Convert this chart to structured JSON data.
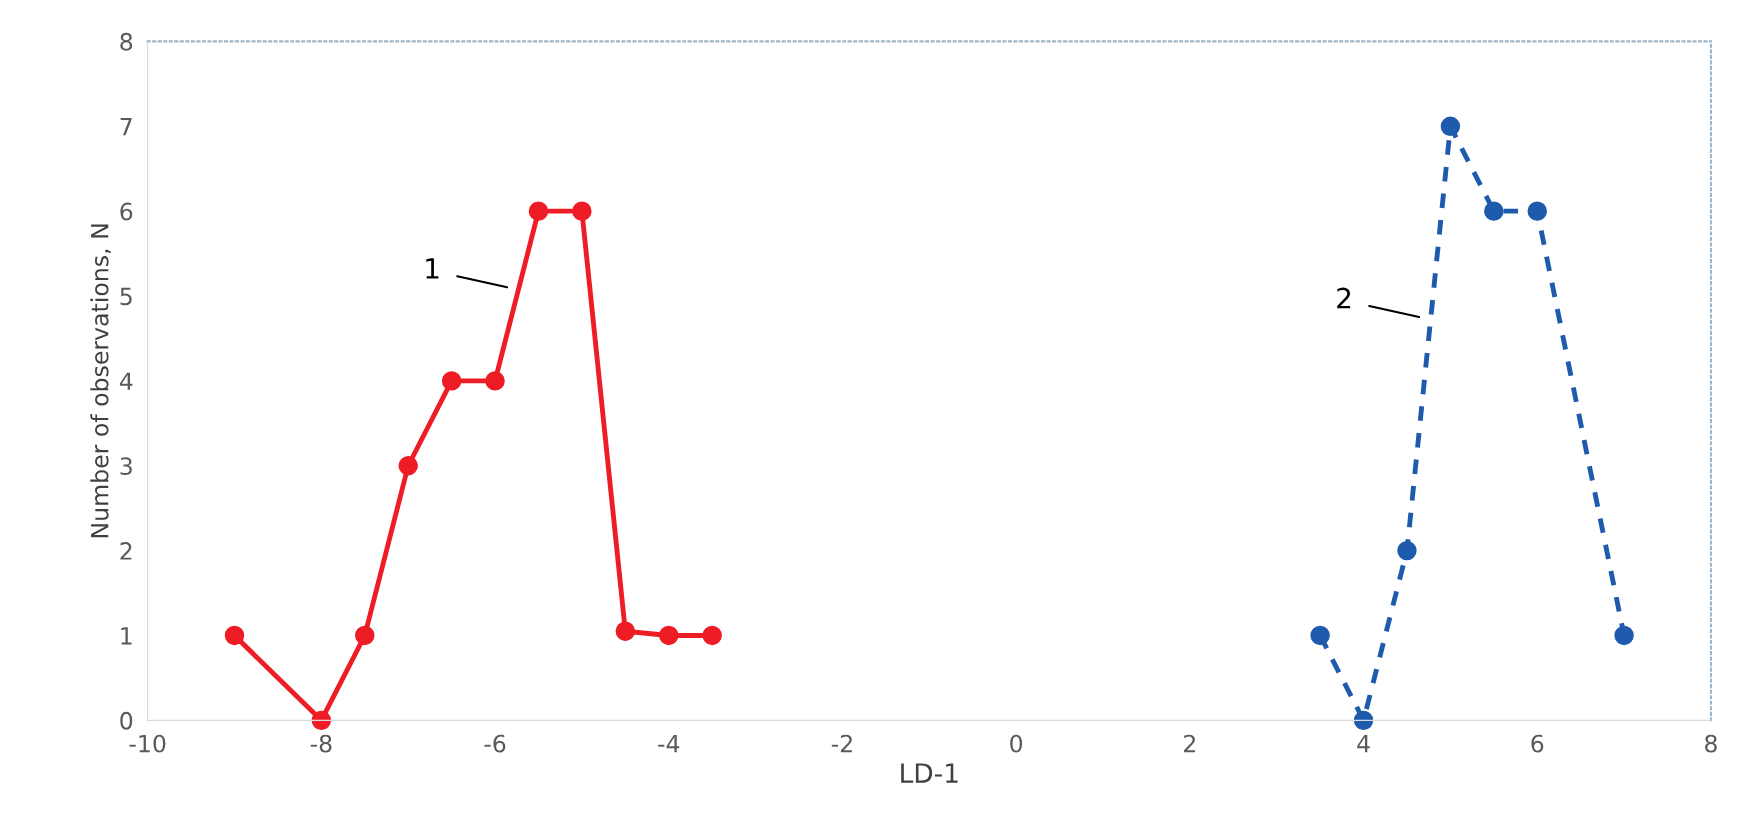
{
  "chart_data": {
    "type": "line",
    "xlabel": "LD-1",
    "ylabel": "Number of observations, N",
    "xlim": [
      -10,
      8
    ],
    "xticks": [
      -10,
      -8,
      -6,
      -4,
      -2,
      0,
      2,
      4,
      6,
      8
    ],
    "ylim": [
      0,
      8
    ],
    "yticks": [
      0,
      1,
      2,
      3,
      4,
      5,
      6,
      7,
      8
    ],
    "grid": false,
    "legend": false,
    "marker": "circle",
    "series": [
      {
        "name": "1",
        "color": "#ee1c25",
        "line_style": "solid",
        "x": [
          -9,
          -8,
          -7.5,
          -7,
          -6.5,
          -6,
          -5.5,
          -5,
          -4.5,
          -4,
          -3.5
        ],
        "values": [
          1,
          0,
          1,
          3,
          4,
          4,
          6,
          6,
          1.05,
          1,
          1
        ]
      },
      {
        "name": "2",
        "color": "#1f5bad",
        "line_style": "dashed",
        "x": [
          3.5,
          4,
          4.5,
          5,
          5.5,
          6,
          7
        ],
        "values": [
          1,
          0,
          2,
          7,
          6,
          6,
          1
        ]
      }
    ]
  }
}
